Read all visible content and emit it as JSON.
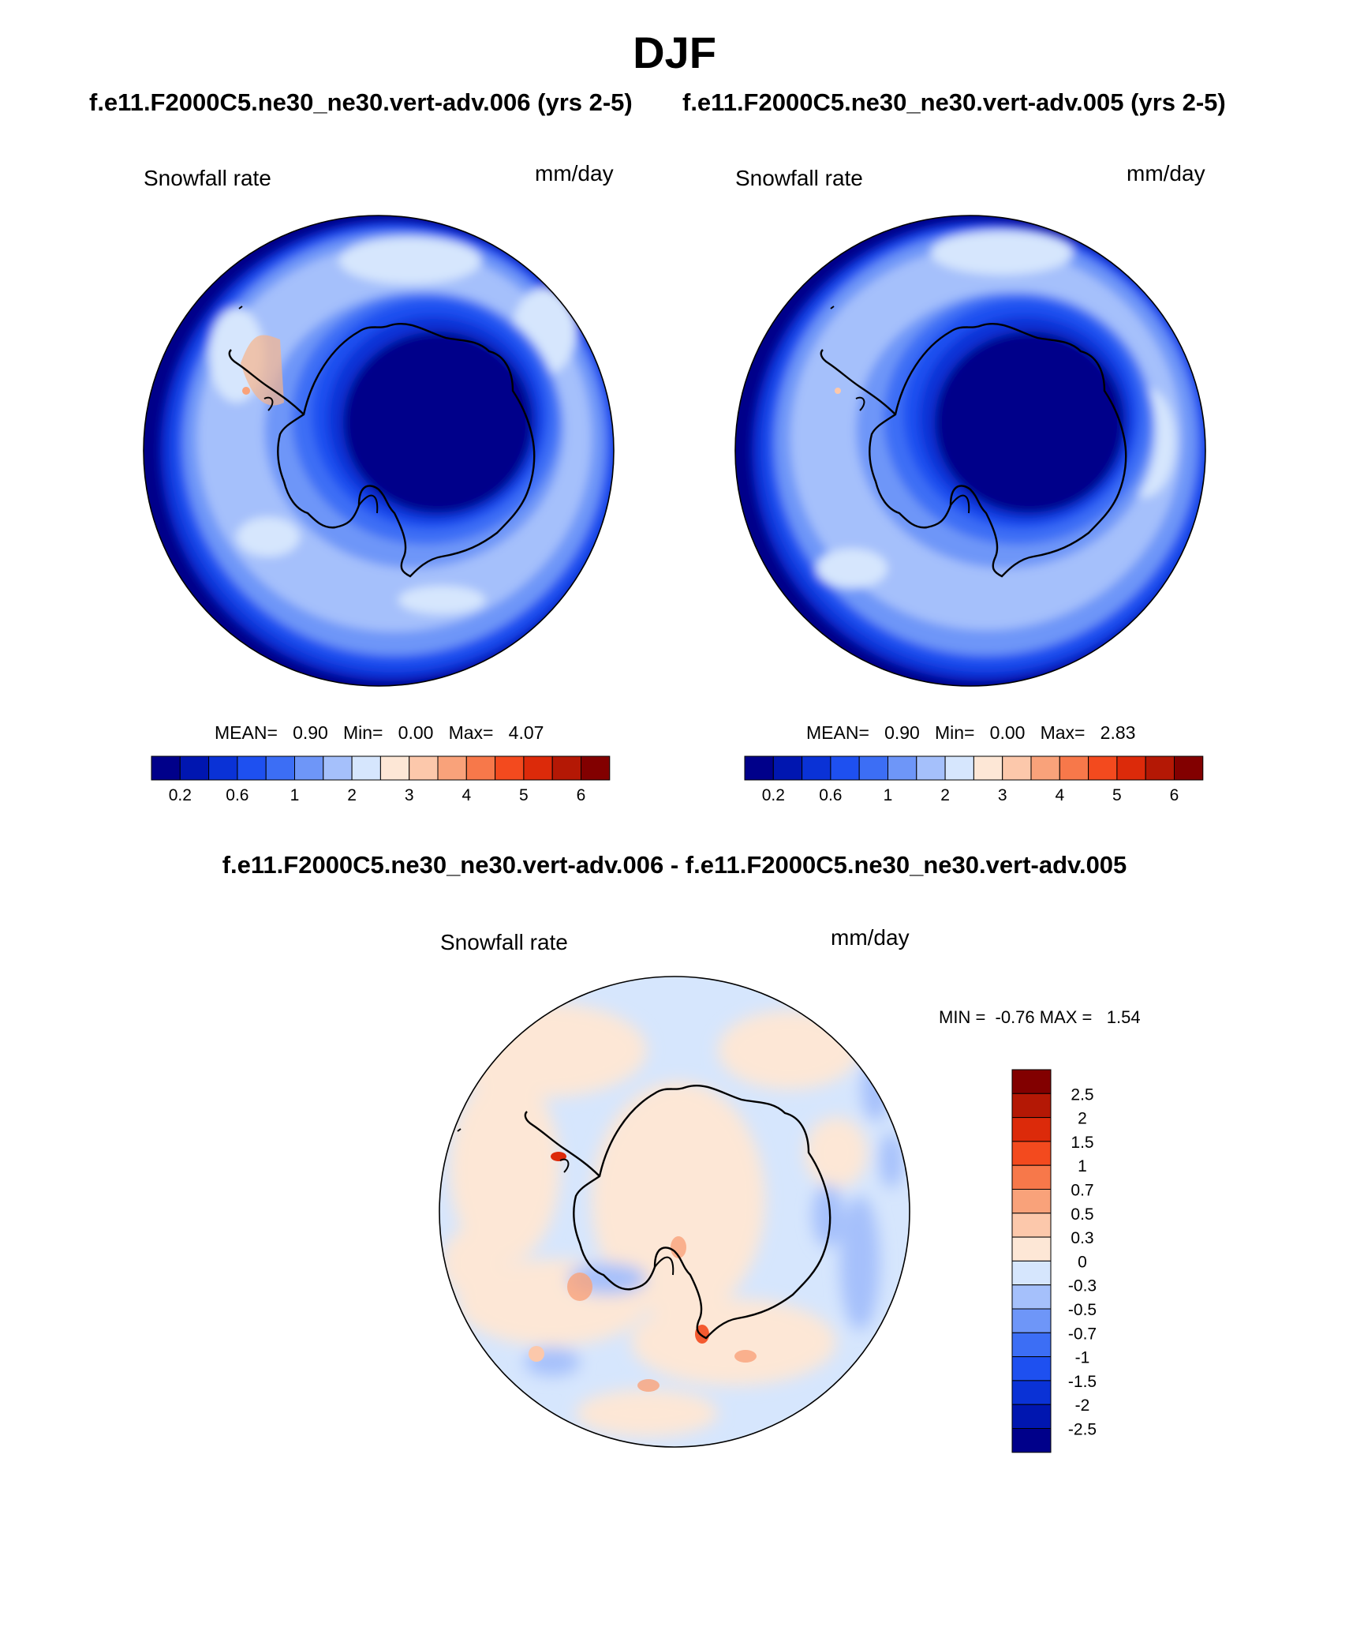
{
  "header": {
    "season": "DJF",
    "subtitle_left": "f.e11.F2000C5.ne30_ne30.vert-adv.006 (yrs 2-5)",
    "subtitle_right": "f.e11.F2000C5.ne30_ne30.vert-adv.005 (yrs 2-5)",
    "diff_title": "f.e11.F2000C5.ne30_ne30.vert-adv.006 - f.e11.F2000C5.ne30_ne30.vert-adv.005"
  },
  "panels": [
    {
      "variable": "Snowfall rate",
      "units": "mm/day",
      "stats": {
        "mean_label": "MEAN=",
        "mean": "0.90",
        "min_label": "Min=",
        "min": "0.00",
        "max_label": "Max=",
        "max": "4.07"
      }
    },
    {
      "variable": "Snowfall rate",
      "units": "mm/day",
      "stats": {
        "mean_label": "MEAN=",
        "mean": "0.90",
        "min_label": "Min=",
        "min": "0.00",
        "max_label": "Max=",
        "max": "2.83"
      }
    }
  ],
  "diff_panel": {
    "variable": "Snowfall rate",
    "units": "mm/day",
    "minmax_text": "MIN =  -0.76 MAX =   1.54"
  },
  "colorbar_horizontal": {
    "tick_labels": [
      "0.2",
      "0.6",
      "1",
      "2",
      "3",
      "4",
      "5",
      "6"
    ],
    "colors": [
      "#00008a",
      "#0016b0",
      "#0a32d6",
      "#1e50f0",
      "#3c6ef5",
      "#6e96f8",
      "#a5c0fb",
      "#d6e6fd",
      "#fde7d6",
      "#fcc8ab",
      "#f9a27a",
      "#f7784a",
      "#f34a1e",
      "#dc2a0a",
      "#b41805",
      "#820000"
    ]
  },
  "colorbar_vertical": {
    "tick_labels": [
      "2.5",
      "2",
      "1.5",
      "1",
      "0.7",
      "0.5",
      "0.3",
      "0",
      "-0.3",
      "-0.5",
      "-0.7",
      "-1",
      "-1.5",
      "-2",
      "-2.5"
    ],
    "colors_top_to_bottom": [
      "#820000",
      "#b41805",
      "#dc2a0a",
      "#f34a1e",
      "#f7784a",
      "#f9a27a",
      "#fcc8ab",
      "#fde7d6",
      "#d6e6fd",
      "#a5c0fb",
      "#6e96f8",
      "#3c6ef5",
      "#1e50f0",
      "#0a32d6",
      "#0016b0",
      "#00008a"
    ]
  }
}
